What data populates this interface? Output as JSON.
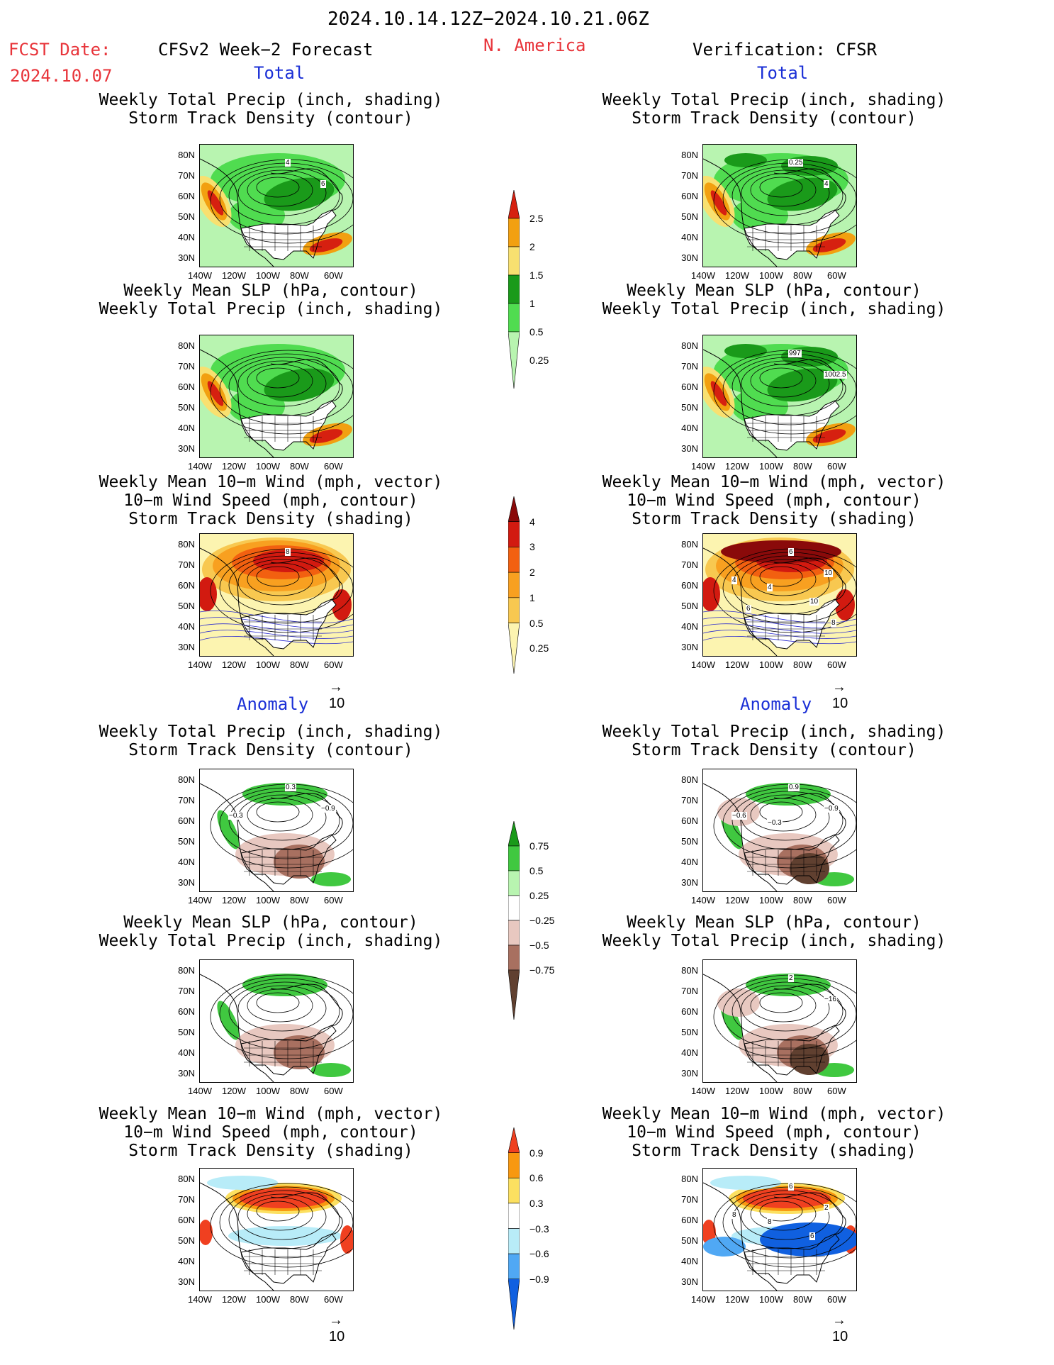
{
  "header": {
    "date_range": "2024.10.14.12Z−2024.10.21.06Z",
    "fcst_label": "FCST Date:",
    "fcst_date": "2024.10.07",
    "model_title": "CFSv2 Week−2 Forecast",
    "region": "N. America",
    "verification": "Verification: CFSR"
  },
  "sections": {
    "total": "Total",
    "anomaly": "Anomaly"
  },
  "panel_titles": {
    "precip_storm": "Weekly Total Precip (inch, shading)\nStorm Track Density (contour)",
    "slp_precip": "Weekly Mean SLP (hPa, contour)\nWeekly Total Precip (inch, shading)",
    "wind_storm": "Weekly Mean 10−m Wind (mph, vector)\n10−m Wind Speed (mph, contour)\nStorm Track Density (shading)"
  },
  "axes": {
    "lat_ticks": [
      "80N",
      "70N",
      "60N",
      "50N",
      "40N",
      "30N"
    ],
    "lon_ticks": [
      "140W",
      "120W",
      "100W",
      "80W",
      "60W"
    ]
  },
  "vector_ref": "10",
  "colorbars": {
    "precip_total": {
      "labels": [
        "2.5",
        "2",
        "1.5",
        "1",
        "0.5",
        "0.25"
      ],
      "colors": [
        "#d62010",
        "#f2a010",
        "#f8e070",
        "#1a9a1a",
        "#50dc50",
        "#b8f4b0"
      ]
    },
    "storm_total": {
      "labels": [
        "4",
        "3",
        "2",
        "1",
        "0.5",
        "0.25"
      ],
      "colors": [
        "#8a0a0a",
        "#d21a10",
        "#f26010",
        "#f8a020",
        "#f8c850",
        "#fcf4b0"
      ]
    },
    "precip_anom": {
      "labels": [
        "0.75",
        "0.5",
        "0.25",
        "−0.25",
        "−0.5",
        "−0.75"
      ],
      "colors": [
        "#1a9a1a",
        "#40c840",
        "#b8f4b0",
        "#ffffff",
        "#e8c8c0",
        "#a87060",
        "#604030"
      ]
    },
    "storm_anom": {
      "labels": [
        "0.9",
        "0.6",
        "0.3",
        "−0.3",
        "−0.6",
        "−0.9"
      ],
      "colors": [
        "#f04020",
        "#f89810",
        "#fce060",
        "#ffffff",
        "#b8ecf8",
        "#50a8f4",
        "#1060e0"
      ]
    }
  },
  "contour_labels": {
    "f_precip": [
      "4",
      "6"
    ],
    "v_precip": [
      "0.25",
      "4"
    ],
    "v_slp": [
      "997",
      "1002.5"
    ],
    "f_wind": [
      "8"
    ],
    "v_wind": [
      "6",
      "10",
      "4",
      "4",
      "10",
      "6",
      "8"
    ],
    "fa_precip": [
      "0.3",
      "−0.9",
      "−0.3"
    ],
    "va_precip": [
      "0.9",
      "−0.9",
      "−0.6",
      "−0.3"
    ],
    "va_slp": [
      "2",
      "−16"
    ],
    "va_wind": [
      "6",
      "2",
      "8",
      "8",
      "6"
    ]
  }
}
